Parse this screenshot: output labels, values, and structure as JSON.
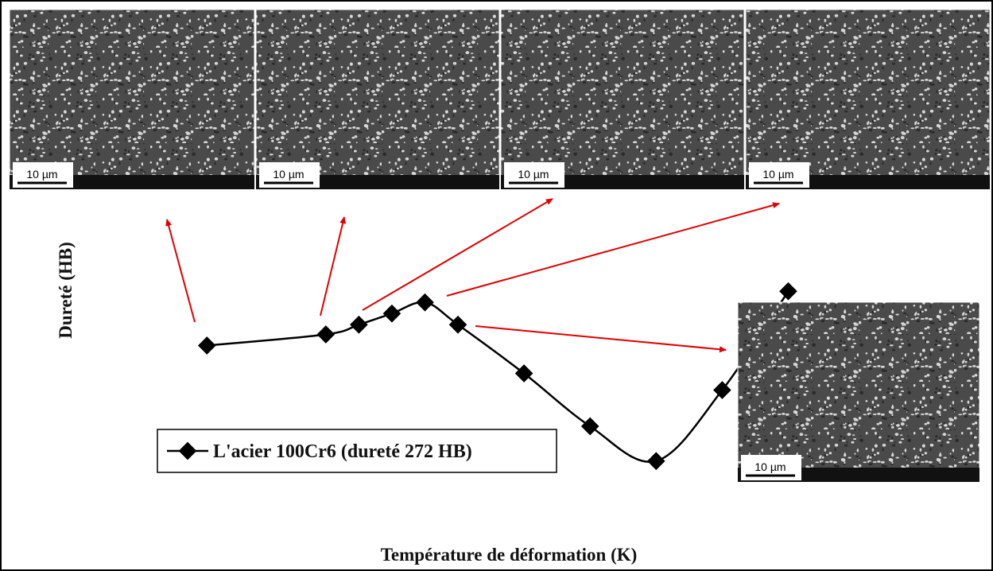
{
  "chart_data": {
    "type": "line",
    "x_label": "Température de déformation (K)",
    "y_label": "Dureté (HB)",
    "series": [
      {
        "name": "L'acier 100Cr6 (dureté 272 HB)",
        "color": "#000000",
        "x": [
          293,
          473,
          523,
          573,
          623,
          673,
          773,
          873,
          973,
          1073,
          1173
        ],
        "values": [
          298,
          306,
          313,
          321,
          329,
          313,
          278,
          240,
          215,
          266,
          337
        ]
      }
    ],
    "xlim": [
      200,
      1300
    ],
    "xticks": [
      200,
      300,
      400,
      500,
      600,
      700,
      800,
      900,
      1000,
      1100,
      1200,
      1300
    ],
    "ylim": [
      200,
      400
    ],
    "yticks": [
      200,
      250,
      300,
      350,
      400
    ],
    "grid": true,
    "legend": "lower left",
    "images": [
      {
        "scale": "10 µm"
      },
      {
        "scale": "10 µm"
      },
      {
        "scale": "10 µm"
      },
      {
        "scale": "10 µm"
      },
      {
        "scale": "10 µm"
      }
    ]
  }
}
